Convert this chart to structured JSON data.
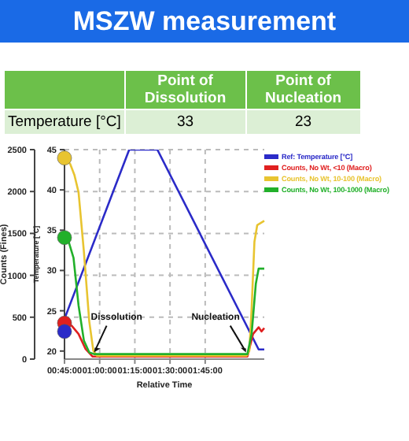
{
  "chart_data": [
    {
      "type": "heatmap",
      "title": "MSZW measurement",
      "categories": [
        "Point of Dissolution",
        "Point of Nucleation"
      ],
      "y_categories": [
        "Temperature [°C]"
      ],
      "cells": [
        [
          33,
          23
        ]
      ],
      "data_labels": true
    },
    {
      "type": "line",
      "xlabel": "Relative Time",
      "ylabel": "Counts (Fines)",
      "y2label": "Temperature [°C]",
      "grid": true,
      "legend": "top right",
      "marker": "none",
      "xlim": [
        0.75,
        2.17
      ],
      "xticks": [
        {
          "value": 0.75,
          "label": "00:45:00"
        },
        {
          "value": 1,
          "label": "01:00:00"
        },
        {
          "value": 1.25,
          "label": "01:15:00"
        },
        {
          "value": 1.5,
          "label": "01:30:00"
        },
        {
          "value": 1.75,
          "label": "01:45:00"
        }
      ],
      "ylim": [
        0,
        2500
      ],
      "yticks": [
        0,
        500,
        1000,
        1500,
        2000,
        2500
      ],
      "y2lim": [
        19,
        45
      ],
      "y2ticks": [
        20,
        25,
        30,
        35,
        40,
        45
      ],
      "series": [
        {
          "name": "Ref: Temperature [°C]",
          "color": "#2b2bc8",
          "axis": "y2",
          "x": [
            0.75,
            1.21,
            1.41,
            2.13,
            2.17
          ],
          "values": [
            24,
            45,
            45,
            20.2,
            20.2
          ]
        },
        {
          "name": "Counts, No Wt, <10 (Macro)",
          "color": "#e02020",
          "x": [
            0.75,
            0.8,
            0.85,
            0.9,
            0.95,
            1.0,
            2.05,
            2.09,
            2.11,
            2.13,
            2.15,
            2.17
          ],
          "values": [
            430,
            400,
            300,
            120,
            30,
            30,
            30,
            300,
            340,
            380,
            330,
            370
          ]
        },
        {
          "name": "Counts, No Wt, 10-100 (Macro)",
          "color": "#e8c430",
          "x": [
            0.75,
            0.79,
            0.82,
            0.85,
            0.888,
            0.926,
            0.955,
            0.98,
            2.045,
            2.064,
            2.08,
            2.1,
            2.12,
            2.17
          ],
          "values": [
            2400,
            2330,
            2200,
            1990,
            1280,
            450,
            100,
            40,
            40,
            100,
            600,
            1400,
            1600,
            1650
          ]
        },
        {
          "name": "Counts, No Wt, 100-1000 (Macro)",
          "color": "#22b02a",
          "x": [
            0.75,
            0.78,
            0.814,
            0.85,
            0.888,
            0.926,
            0.96,
            2.05,
            2.08,
            2.11,
            2.13,
            2.17
          ],
          "values": [
            1450,
            1400,
            1210,
            640,
            220,
            80,
            60,
            60,
            300,
            900,
            1080,
            1080
          ]
        },
        {
          "type": "scatter",
          "marker": "circle",
          "x": [
            0.75,
            0.75,
            0.75,
            0.75
          ],
          "values": [
            2400,
            1450,
            430,
            330
          ],
          "colors": [
            "#e8c430",
            "#22b02a",
            "#e02020",
            "#2b2bc8"
          ]
        }
      ],
      "annotations": [
        {
          "text": "Dissolution",
          "x": 0.96,
          "y": 60
        },
        {
          "text": "Nucleation",
          "x": 2.04,
          "y": 60
        }
      ]
    }
  ]
}
